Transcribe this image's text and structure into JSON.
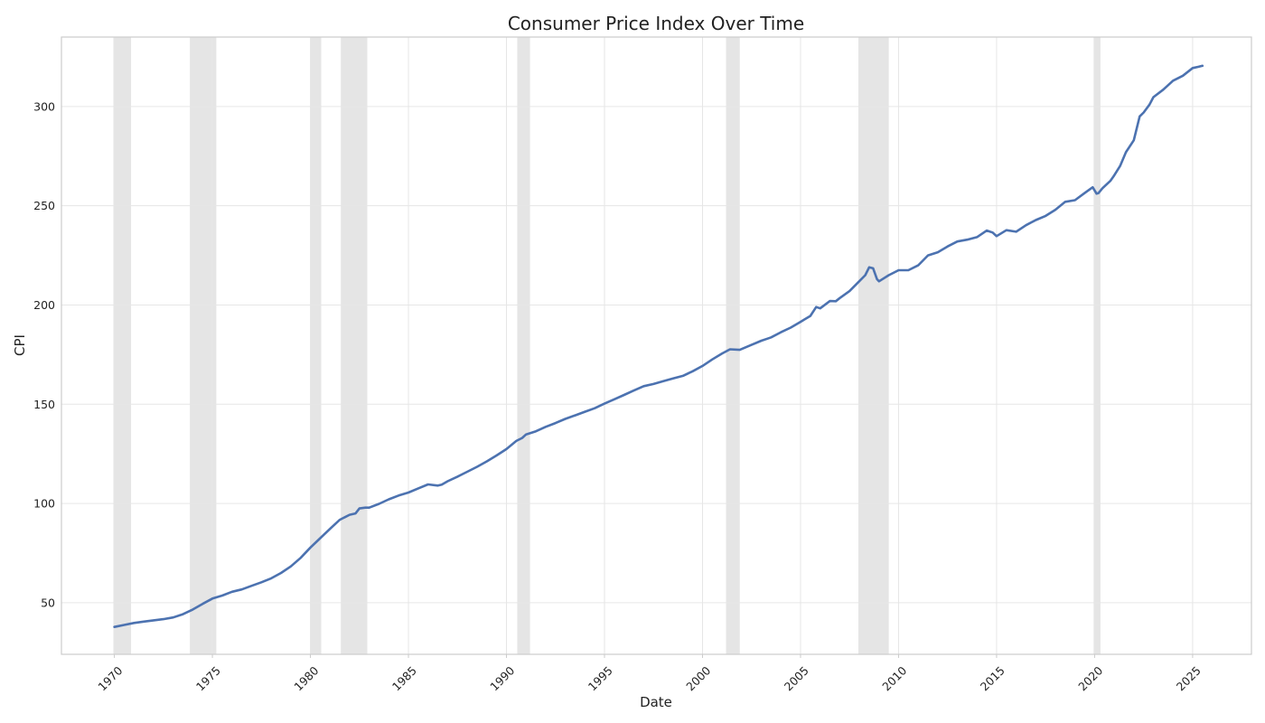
{
  "chart_data": {
    "type": "line",
    "title": "Consumer Price Index Over Time",
    "xlabel": "Date",
    "ylabel": "CPI",
    "xlim": [
      1967.3,
      2028.0
    ],
    "ylim": [
      24.0,
      335.0
    ],
    "x_ticks": [
      1970,
      1975,
      1980,
      1985,
      1990,
      1995,
      2000,
      2005,
      2010,
      2015,
      2020,
      2025
    ],
    "y_ticks": [
      50,
      100,
      150,
      200,
      250,
      300
    ],
    "grid": true,
    "legend": "none",
    "colors": {
      "line": "#4c72b0",
      "recession": "#cfcfcf",
      "grid": "#e6e6e6",
      "frame": "#cccccc"
    },
    "shaded_periods": [
      [
        1969.95,
        1970.85
      ],
      [
        1973.85,
        1975.2
      ],
      [
        1980.0,
        1980.55
      ],
      [
        1981.55,
        1982.9
      ],
      [
        1990.55,
        1991.2
      ],
      [
        2001.2,
        2001.9
      ],
      [
        2007.95,
        2009.5
      ],
      [
        2019.95,
        2020.3
      ]
    ],
    "series": [
      {
        "x": [
          1970.0,
          1970.5,
          1971.0,
          1971.5,
          1972.0,
          1972.5,
          1973.0,
          1973.5,
          1974.0,
          1974.5,
          1975.0,
          1975.5,
          1976.0,
          1976.5,
          1977.0,
          1977.5,
          1978.0,
          1978.5,
          1979.0,
          1979.5,
          1980.0,
          1980.5,
          1981.0,
          1981.5,
          1982.0,
          1982.3,
          1982.5,
          1982.8,
          1983.0,
          1983.5,
          1984.0,
          1984.5,
          1985.0,
          1985.5,
          1986.0,
          1986.5,
          1986.7,
          1987.0,
          1987.5,
          1988.0,
          1988.5,
          1989.0,
          1989.5,
          1990.0,
          1990.5,
          1990.8,
          1991.0,
          1991.5,
          1992.0,
          1992.5,
          1993.0,
          1993.5,
          1994.0,
          1994.5,
          1995.0,
          1995.5,
          1996.0,
          1996.5,
          1997.0,
          1997.5,
          1998.0,
          1998.5,
          1999.0,
          1999.5,
          2000.0,
          2000.5,
          2001.0,
          2001.4,
          2001.9,
          2002.5,
          2003.0,
          2003.3,
          2003.5,
          2004.0,
          2004.5,
          2005.0,
          2005.5,
          2005.8,
          2006.0,
          2006.5,
          2006.8,
          2007.0,
          2007.5,
          2008.0,
          2008.3,
          2008.5,
          2008.7,
          2008.9,
          2009.0,
          2009.5,
          2010.0,
          2010.5,
          2011.0,
          2011.5,
          2012.0,
          2012.5,
          2013.0,
          2013.5,
          2014.0,
          2014.5,
          2014.8,
          2015.0,
          2015.5,
          2016.0,
          2016.5,
          2017.0,
          2017.5,
          2018.0,
          2018.5,
          2019.0,
          2019.5,
          2019.9,
          2020.1,
          2020.2,
          2020.4,
          2020.8,
          2021.0,
          2021.3,
          2021.6,
          2022.0,
          2022.3,
          2022.5,
          2022.8,
          2023.0,
          2023.5,
          2024.0,
          2024.5,
          2025.0,
          2025.3,
          2025.5
        ],
        "y": [
          37.8,
          38.8,
          39.8,
          40.5,
          41.1,
          41.7,
          42.6,
          44.2,
          46.6,
          49.4,
          52.1,
          53.6,
          55.5,
          56.7,
          58.5,
          60.3,
          62.3,
          65.0,
          68.3,
          72.6,
          77.8,
          82.5,
          87.2,
          91.8,
          94.3,
          95.0,
          97.5,
          97.9,
          97.9,
          99.8,
          102.1,
          104.0,
          105.5,
          107.6,
          109.6,
          109.0,
          109.5,
          111.2,
          113.5,
          116.0,
          118.5,
          121.2,
          124.2,
          127.4,
          131.5,
          133.0,
          134.8,
          136.4,
          138.6,
          140.5,
          142.6,
          144.4,
          146.2,
          148.0,
          150.3,
          152.5,
          154.7,
          156.9,
          159.1,
          160.2,
          161.6,
          163.0,
          164.3,
          166.6,
          169.3,
          172.6,
          175.6,
          177.7,
          177.4,
          179.9,
          182.0,
          183.0,
          183.7,
          186.3,
          188.6,
          191.5,
          194.5,
          199.0,
          198.3,
          202.0,
          201.9,
          203.5,
          207.0,
          212.0,
          215.0,
          219.0,
          218.5,
          213.0,
          211.9,
          215.0,
          217.5,
          217.5,
          220.0,
          225.0,
          226.6,
          229.5,
          232.0,
          232.9,
          234.2,
          237.5,
          236.5,
          234.7,
          237.7,
          236.9,
          240.2,
          242.8,
          244.9,
          248.0,
          252.0,
          252.8,
          256.5,
          259.3,
          256.1,
          256.4,
          258.8,
          262.5,
          265.3,
          270.0,
          277.0,
          283.0,
          295.0,
          297.0,
          301.0,
          304.7,
          308.5,
          313.0,
          315.5,
          319.4,
          320.0,
          320.5
        ]
      }
    ]
  }
}
